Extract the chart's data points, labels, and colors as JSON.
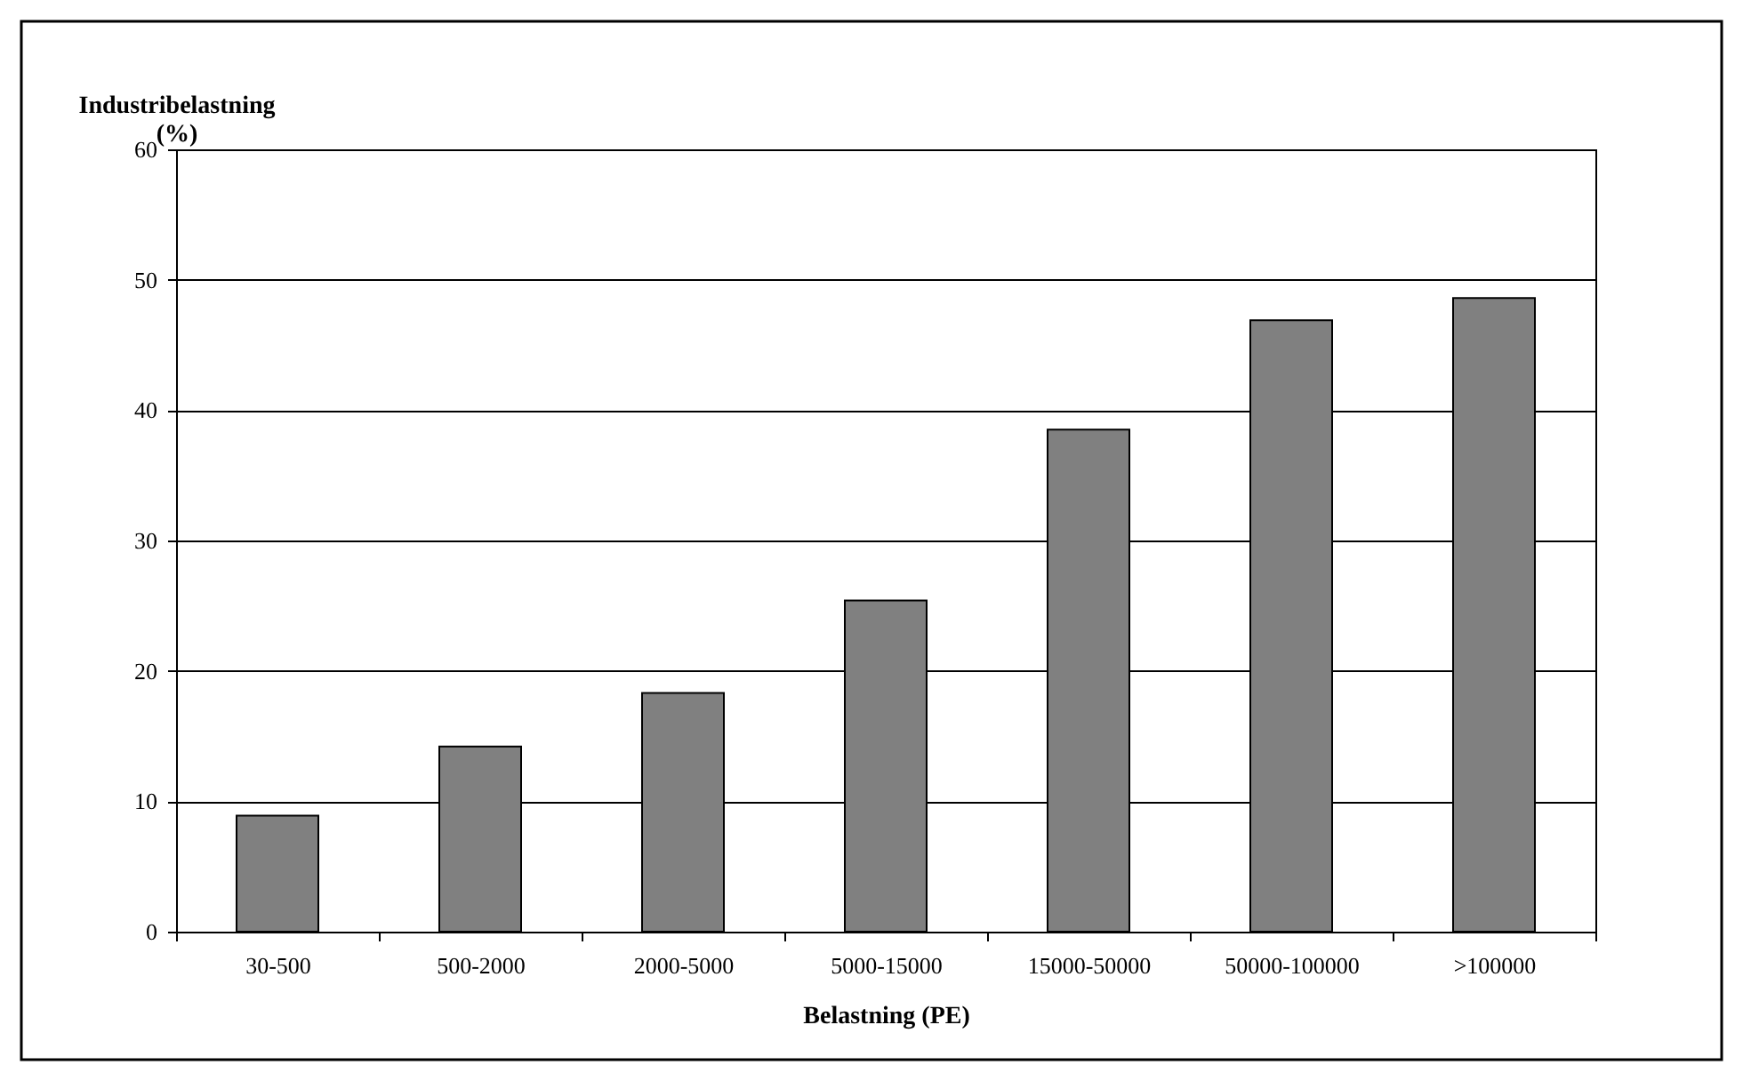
{
  "chart_data": {
    "type": "bar",
    "xlabel": "Belastning (PE)",
    "ylabel": "Industribelastning (%)",
    "categories": [
      "30-500",
      "500-2000",
      "2000-5000",
      "5000-15000",
      "15000-50000",
      "50000-100000",
      ">100000"
    ],
    "values": [
      8.9,
      14.2,
      18.3,
      25.4,
      38.5,
      46.9,
      48.6
    ],
    "color": "#808080",
    "ylim": [
      0,
      60
    ],
    "yticks": [
      0,
      10,
      20,
      30,
      40,
      50,
      60
    ],
    "grid": "y"
  }
}
